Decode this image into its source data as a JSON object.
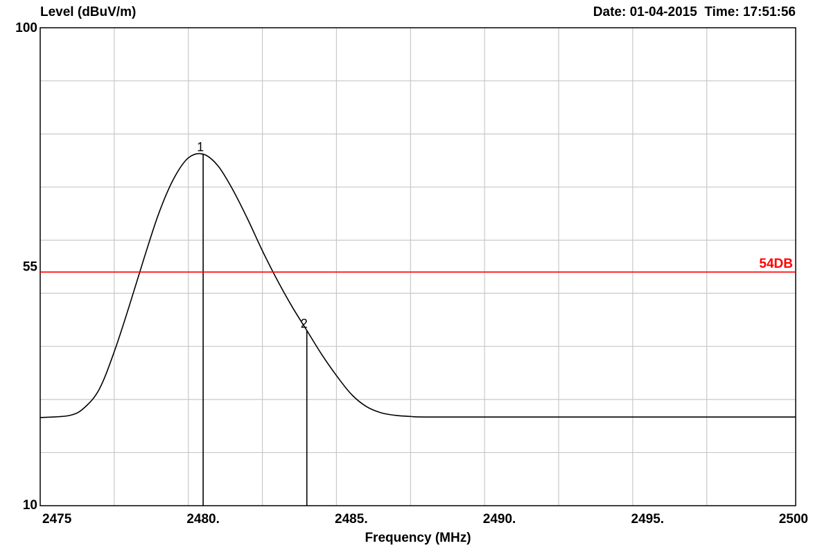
{
  "chart_data": {
    "type": "line",
    "ylabel": "Level (dBuV/m)",
    "xlabel": "Frequency (MHz)",
    "timestamp": "Date: 01-04-2015  Time: 17:51:56",
    "xlim": [
      2474.5,
      2500
    ],
    "ylim": [
      10,
      100
    ],
    "x_ticks": [
      {
        "value": 2475,
        "label": "2475"
      },
      {
        "value": 2480,
        "label": "2480."
      },
      {
        "value": 2485,
        "label": "2485."
      },
      {
        "value": 2490,
        "label": "2490."
      },
      {
        "value": 2495,
        "label": "2495."
      },
      {
        "value": 2500,
        "label": "2500"
      }
    ],
    "y_ticks": [
      {
        "value": 100,
        "label": "100"
      },
      {
        "value": 55,
        "label": "55"
      },
      {
        "value": 10,
        "label": "10"
      }
    ],
    "grid": true,
    "x_gridlines": [
      2477,
      2479.5,
      2482,
      2484.5,
      2487,
      2489.5,
      2492,
      2494.5,
      2497
    ],
    "y_gridlines": [
      20,
      30,
      40,
      50,
      60,
      70,
      80,
      90
    ],
    "series": [
      {
        "color": "#000000",
        "x": [
          2474.5,
          2475.5,
          2476,
          2476.5,
          2477,
          2477.5,
          2478,
          2478.5,
          2479,
          2479.5,
          2480,
          2480.5,
          2481,
          2481.5,
          2482,
          2482.5,
          2483,
          2483.5,
          2484,
          2484.5,
          2485,
          2485.5,
          2486,
          2486.5,
          2487,
          2487.5,
          2490,
          2495,
          2500
        ],
        "y": [
          26.6,
          27.0,
          28.5,
          32.0,
          39.0,
          47.5,
          56.5,
          65.0,
          71.5,
          75.5,
          76.2,
          74.0,
          69.5,
          64.0,
          58.0,
          52.5,
          47.5,
          43.0,
          38.5,
          34.5,
          31.0,
          28.7,
          27.5,
          27.0,
          26.8,
          26.7,
          26.7,
          26.7,
          26.7
        ]
      }
    ],
    "limit_line": {
      "value": 54,
      "label": "54DB",
      "color": "#ff0000"
    },
    "markers": [
      {
        "label": "1",
        "x": 2480.0,
        "y": 76.2
      },
      {
        "label": "2",
        "x": 2483.5,
        "y": 43.0
      }
    ]
  }
}
